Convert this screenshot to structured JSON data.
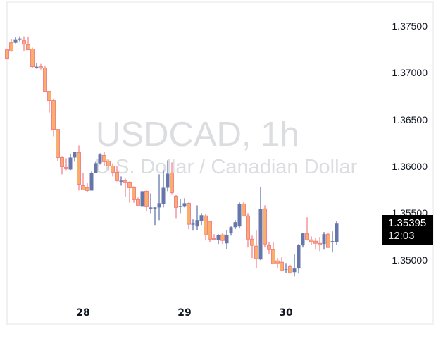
{
  "chart": {
    "symbol_title": "USDCAD, 1h",
    "symbol_description": "U.S. Dollar / Canadian Dollar",
    "colors": {
      "up_body": "#6675aa",
      "up_wick": "#5a6aa6",
      "down_body": "#f9ae6a",
      "down_border": "#f27a85",
      "down_wick": "#f27a85",
      "watermark": "#dcdde0",
      "price_line": "#000000",
      "price_tag_bg": "#000000",
      "price_tag_text": "#ffffff"
    },
    "y_axis": {
      "labels": [
        "1.37500",
        "1.37000",
        "1.36500",
        "1.36000",
        "1.35500",
        "1.35000"
      ]
    },
    "x_axis": {
      "labels": [
        "28",
        "29",
        "30"
      ]
    },
    "last_price": {
      "value": "1.35395",
      "countdown": "12:03"
    }
  },
  "chart_data": {
    "type": "candlestick",
    "title": "USDCAD, 1h",
    "subtitle": "U.S. Dollar / Canadian Dollar",
    "xlabel": "",
    "ylabel": "",
    "x_ticks": [
      "28",
      "29",
      "30"
    ],
    "y_ticks": [
      1.375,
      1.37,
      1.365,
      1.36,
      1.355,
      1.35
    ],
    "ylim": [
      1.3465,
      1.3778
    ],
    "grid": false,
    "last_price": 1.35395,
    "countdown": "12:03",
    "candles_px_note": "each candle: [x_center_px, open, high, low, close] in price units",
    "candles": [
      [
        10,
        1.37247,
        1.37247,
        1.37149,
        1.37149
      ],
      [
        16,
        1.37322,
        1.3736,
        1.37224,
        1.37232
      ],
      [
        22,
        1.37322,
        1.37383,
        1.37315,
        1.37352
      ],
      [
        28,
        1.37352,
        1.3739,
        1.37337,
        1.37367
      ],
      [
        34,
        1.37345,
        1.3739,
        1.37232,
        1.37307
      ],
      [
        40,
        1.373,
        1.37383,
        1.37247,
        1.37247
      ],
      [
        46,
        1.37255,
        1.3727,
        1.37051,
        1.37066
      ],
      [
        52,
        1.37066,
        1.37104,
        1.37044,
        1.37066
      ],
      [
        58,
        1.37066,
        1.37096,
        1.37036,
        1.37051
      ],
      [
        64,
        1.37051,
        1.37074,
        1.36795,
        1.36803
      ],
      [
        70,
        1.36803,
        1.36803,
        1.36576,
        1.36705
      ],
      [
        76,
        1.36705,
        1.36727,
        1.36322,
        1.36396
      ],
      [
        82,
        1.36396,
        1.36396,
        1.36059,
        1.36096
      ],
      [
        88,
        1.36096,
        1.36104,
        1.35916,
        1.35998
      ],
      [
        94,
        1.35991,
        1.36089,
        1.35961,
        1.35976
      ],
      [
        100,
        1.35968,
        1.36134,
        1.35961,
        1.36096
      ],
      [
        106,
        1.36096,
        1.36142,
        1.36051,
        1.36157
      ],
      [
        112,
        1.36149,
        1.36224,
        1.35742,
        1.3581
      ],
      [
        118,
        1.35795,
        1.35931,
        1.3578,
        1.3575
      ],
      [
        124,
        1.35772,
        1.35825,
        1.35727,
        1.35742
      ],
      [
        130,
        1.35742,
        1.35946,
        1.35742,
        1.35931
      ],
      [
        136,
        1.35931,
        1.36051,
        1.35931,
        1.36036
      ],
      [
        142,
        1.36036,
        1.36142,
        1.36021,
        1.36127
      ],
      [
        148,
        1.36119,
        1.36157,
        1.36006,
        1.36051
      ],
      [
        154,
        1.36059,
        1.36074,
        1.35961,
        1.36006
      ],
      [
        160,
        1.36006,
        1.36036,
        1.35893,
        1.35938
      ],
      [
        166,
        1.35938,
        1.36006,
        1.3584,
        1.35848
      ],
      [
        172,
        1.35848,
        1.35893,
        1.35795,
        1.35848
      ],
      [
        178,
        1.35848,
        1.3587,
        1.35678,
        1.35833
      ],
      [
        184,
        1.35833,
        1.3584,
        1.35612,
        1.35772
      ],
      [
        190,
        1.35772,
        1.35787,
        1.35612,
        1.35645
      ],
      [
        196,
        1.35645,
        1.35667,
        1.35605,
        1.35584
      ],
      [
        202,
        1.35577,
        1.35735,
        1.35577,
        1.35735
      ],
      [
        208,
        1.35735,
        1.35742,
        1.35517,
        1.35577
      ],
      [
        214,
        1.35562,
        1.35712,
        1.35502,
        1.35562
      ],
      [
        220,
        1.35562,
        1.35569,
        1.35375,
        1.35562
      ],
      [
        226,
        1.35562,
        1.35916,
        1.35427,
        1.35607
      ],
      [
        232,
        1.356,
        1.35961,
        1.35562,
        1.35772
      ],
      [
        238,
        1.35772,
        1.36066,
        1.35735,
        1.35923
      ],
      [
        244,
        1.35931,
        1.36044,
        1.35705,
        1.3572
      ],
      [
        250,
        1.35682,
        1.35697,
        1.35441,
        1.35562
      ],
      [
        256,
        1.35577,
        1.35652,
        1.35502,
        1.35577
      ],
      [
        262,
        1.35577,
        1.3566,
        1.35562,
        1.35607
      ],
      [
        268,
        1.35607,
        1.35615,
        1.3533,
        1.35383
      ],
      [
        274,
        1.3539,
        1.35435,
        1.35315,
        1.3539
      ],
      [
        280,
        1.3536,
        1.35584,
        1.35322,
        1.35428
      ],
      [
        286,
        1.3542,
        1.35502,
        1.35375,
        1.3548
      ],
      [
        292,
        1.35473,
        1.35495,
        1.35209,
        1.3527
      ],
      [
        298,
        1.35413,
        1.3542,
        1.35194,
        1.35224
      ],
      [
        304,
        1.35232,
        1.35277,
        1.35217,
        1.35224
      ],
      [
        310,
        1.35217,
        1.35277,
        1.35172,
        1.3527
      ],
      [
        316,
        1.3527,
        1.35292,
        1.35172,
        1.35209
      ],
      [
        322,
        1.35179,
        1.35322,
        1.35119,
        1.3527
      ],
      [
        328,
        1.35292,
        1.3536,
        1.35262,
        1.35352
      ],
      [
        334,
        1.35352,
        1.35428,
        1.3533,
        1.35405
      ],
      [
        340,
        1.3536,
        1.35615,
        1.35337,
        1.356
      ],
      [
        346,
        1.356,
        1.35622,
        1.35465,
        1.35473
      ],
      [
        352,
        1.35473,
        1.35503,
        1.35134,
        1.35224
      ],
      [
        358,
        1.35224,
        1.35262,
        1.35021,
        1.35157
      ],
      [
        364,
        1.35149,
        1.35315,
        1.34917,
        1.35014
      ],
      [
        370,
        1.35006,
        1.3578,
        1.34999,
        1.35548
      ],
      [
        376,
        1.35548,
        1.35585,
        1.35134,
        1.35172
      ],
      [
        382,
        1.35157,
        1.35194,
        1.35066,
        1.35111
      ],
      [
        388,
        1.35111,
        1.35194,
        1.34968,
        1.34961
      ],
      [
        394,
        1.34991,
        1.35021,
        1.34917,
        1.34968
      ],
      [
        400,
        1.34976,
        1.35029,
        1.34878,
        1.34886
      ],
      [
        406,
        1.34908,
        1.34968,
        1.34863,
        1.34908
      ],
      [
        412,
        1.34931,
        1.34946,
        1.34855,
        1.34863
      ],
      [
        418,
        1.3487,
        1.35059,
        1.34825,
        1.34916
      ],
      [
        424,
        1.34916,
        1.35172,
        1.34855,
        1.35164
      ],
      [
        430,
        1.35157,
        1.35292,
        1.35134,
        1.35285
      ],
      [
        436,
        1.35285,
        1.35458,
        1.35209,
        1.35217
      ],
      [
        442,
        1.35217,
        1.35255,
        1.35164,
        1.35194
      ],
      [
        448,
        1.35202,
        1.3524,
        1.35119,
        1.35179
      ],
      [
        454,
        1.35179,
        1.35247,
        1.35096,
        1.35164
      ],
      [
        460,
        1.35172,
        1.353,
        1.35111,
        1.35277
      ],
      [
        466,
        1.35277,
        1.35285,
        1.35134,
        1.35134
      ],
      [
        472,
        1.35202,
        1.35307,
        1.35081,
        1.35202
      ],
      [
        478,
        1.35194,
        1.3542,
        1.35164,
        1.3539
      ]
    ]
  }
}
